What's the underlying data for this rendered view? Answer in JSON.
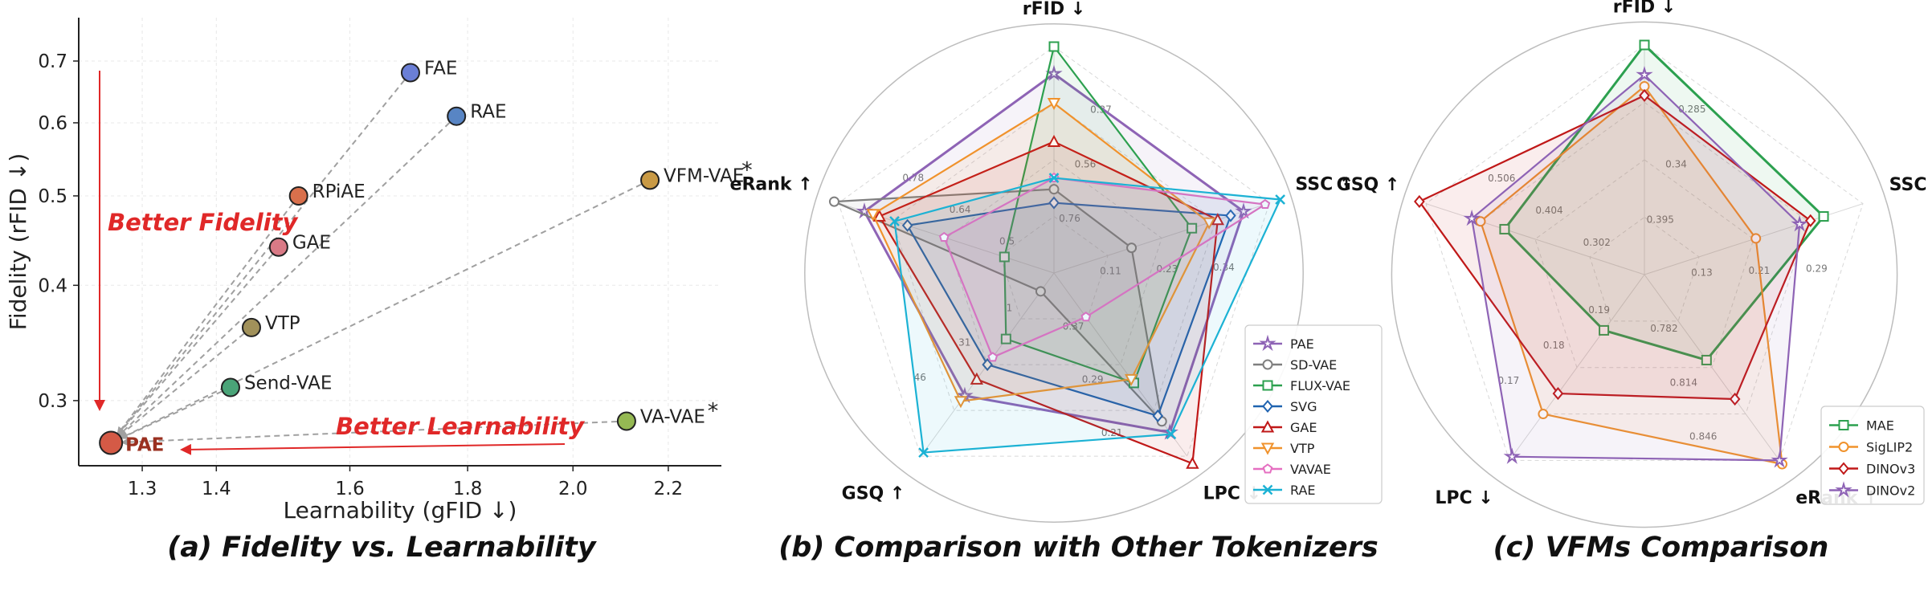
{
  "panel_a": {
    "caption": "(a) Fidelity vs. Learnability",
    "annotations": {
      "better_fidelity": "Better Fidelity",
      "better_learnability": "Better Learnability"
    },
    "colors": {
      "arrow": "#e02828",
      "dash": "#a0a0a0"
    },
    "chart_data": {
      "type": "scatter",
      "xlabel": "Learnability (gFID ↓)",
      "ylabel": "Fidelity (rFID ↓)",
      "xscale": "log",
      "yscale": "log",
      "xlim": [
        1.22,
        2.32
      ],
      "ylim": [
        0.255,
        0.78
      ],
      "xticks": [
        1.3,
        1.4,
        1.6,
        1.8,
        2.0,
        2.2
      ],
      "xtick_labels": [
        "1.3",
        "1.4",
        "1.6",
        "1.8",
        "2.0",
        "2.2"
      ],
      "yticks": [
        0.3,
        0.4,
        0.5,
        0.6,
        0.7
      ],
      "ytick_labels": [
        "0.3",
        "0.4",
        "0.5",
        "0.6",
        "0.7"
      ],
      "grid": true,
      "points": [
        {
          "label": "FAE",
          "x": 1.7,
          "y": 0.68,
          "color": "#6b7fd6",
          "star": false
        },
        {
          "label": "RAE",
          "x": 1.78,
          "y": 0.61,
          "color": "#5885c4",
          "star": false
        },
        {
          "label": "VFM-VAE",
          "x": 2.16,
          "y": 0.52,
          "color": "#c99a45",
          "star": true
        },
        {
          "label": "RPiAE",
          "x": 1.52,
          "y": 0.5,
          "color": "#d9704c",
          "star": false
        },
        {
          "label": "GAE",
          "x": 1.49,
          "y": 0.44,
          "color": "#d97a86",
          "star": false
        },
        {
          "label": "VTP",
          "x": 1.45,
          "y": 0.36,
          "color": "#a1915a",
          "star": false
        },
        {
          "label": "Send-VAE",
          "x": 1.42,
          "y": 0.31,
          "color": "#4aa478",
          "star": false
        },
        {
          "label": "VA-VAE",
          "x": 2.11,
          "y": 0.285,
          "color": "#95b953",
          "star": true
        },
        {
          "label": "PAE",
          "x": 1.26,
          "y": 0.27,
          "color": "#d45a46",
          "star": false
        }
      ],
      "star_mark": "*"
    }
  },
  "panel_b": {
    "caption": "(b) Comparison with Other Tokenizers",
    "chart_data": {
      "type": "radar",
      "axes": [
        "rFID ↓",
        "SSC ↑",
        "LPC ↓",
        "GSQ ↑",
        "eRank ↑"
      ],
      "ring_labels": [
        [
          "0.76",
          "0.56",
          "0.37"
        ],
        [
          "0.11",
          "0.23",
          "0.34"
        ],
        [
          "0.37",
          "0.29",
          "0.21"
        ],
        [
          "1",
          "31",
          "46"
        ],
        [
          "0.5",
          "0.64",
          "0.78"
        ]
      ],
      "series": [
        {
          "name": "PAE",
          "color": "#8e63b5",
          "marker": "star",
          "values": [
            0.88,
            0.88,
            0.87,
            0.67,
            0.88
          ]
        },
        {
          "name": "SD-VAE",
          "color": "#7f7f7f",
          "marker": "circle",
          "values": [
            0.37,
            0.36,
            0.81,
            0.1,
            1.02
          ]
        },
        {
          "name": "FLUX-VAE",
          "color": "#2ca04f",
          "marker": "square",
          "values": [
            1.0,
            0.64,
            0.6,
            0.36,
            0.23
          ]
        },
        {
          "name": "SVG",
          "color": "#1f63b0",
          "marker": "diamond",
          "values": [
            0.31,
            0.82,
            0.78,
            0.5,
            0.68
          ]
        },
        {
          "name": "GAE",
          "color": "#c01818",
          "marker": "triangle",
          "values": [
            0.58,
            0.76,
            1.04,
            0.58,
            0.81
          ]
        },
        {
          "name": "VTP",
          "color": "#f0922c",
          "marker": "tri-down",
          "values": [
            0.75,
            0.72,
            0.58,
            0.7,
            0.84
          ]
        },
        {
          "name": "VAVAE",
          "color": "#e56fc1",
          "marker": "pentagon",
          "values": [
            0.42,
            0.98,
            0.24,
            0.46,
            0.51
          ]
        },
        {
          "name": "RAE",
          "color": "#1cb2d4",
          "marker": "x",
          "values": [
            0.42,
            1.05,
            0.88,
            0.98,
            0.74
          ]
        }
      ]
    }
  },
  "panel_c": {
    "caption": "(c) VFMs Comparison",
    "chart_data": {
      "type": "radar",
      "axes": [
        "rFID ↓",
        "SSC ↑",
        "eRank ↑",
        "LPC ↓",
        "GSQ ↑"
      ],
      "ring_labels": [
        [
          "0.395",
          "0.34",
          "0.285"
        ],
        [
          "0.13",
          "0.21",
          "0.29"
        ],
        [
          "0.782",
          "0.814",
          "0.846"
        ],
        [
          "0.19",
          "0.18",
          "0.17"
        ],
        [
          "0.302",
          "0.404",
          "0.506"
        ]
      ],
      "series": [
        {
          "name": "MAE",
          "color": "#2ca04f",
          "marker": "square",
          "values": [
            1.0,
            0.82,
            0.46,
            0.3,
            0.64
          ]
        },
        {
          "name": "SigLIP2",
          "color": "#f0922c",
          "marker": "circle",
          "values": [
            0.82,
            0.51,
            1.02,
            0.75,
            0.75
          ]
        },
        {
          "name": "DINOv3",
          "color": "#c01818",
          "marker": "diamond",
          "values": [
            0.78,
            0.76,
            0.67,
            0.64,
            1.03
          ]
        },
        {
          "name": "DINOv2",
          "color": "#8e63b5",
          "marker": "star",
          "values": [
            0.87,
            0.71,
            1.0,
            0.98,
            0.79
          ]
        }
      ]
    }
  }
}
